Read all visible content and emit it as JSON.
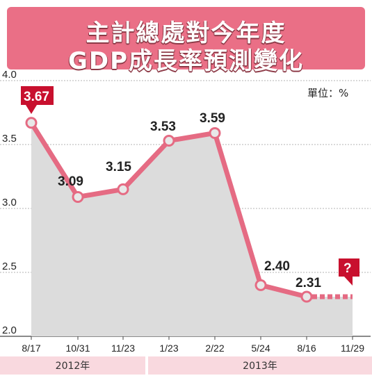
{
  "header": {
    "title_line1": "主計總處對今年度",
    "title_line2": "GDP成長率預測變化"
  },
  "colors": {
    "line": "#e56b83",
    "marker_fill": "#e8e8e8",
    "area": "#dcdcdc",
    "callout": "#c8102e",
    "year_band": "#f9d9df",
    "title_band": "#ea6f86"
  },
  "chart_data": {
    "type": "line",
    "title": "主計總處對今年度 GDP成長率預測變化",
    "unit_label": "單位：%",
    "categories": [
      "8/17",
      "10/31",
      "11/23",
      "1/23",
      "2/22",
      "5/24",
      "8/16",
      "11/29"
    ],
    "values": [
      3.67,
      3.09,
      3.15,
      3.53,
      3.59,
      2.4,
      2.31,
      null
    ],
    "value_labels": [
      "3.67",
      "3.09",
      "3.15",
      "3.53",
      "3.59",
      "2.40",
      "2.31",
      "?"
    ],
    "pending_label": "?",
    "y_ticks": [
      "4.0",
      "3.5",
      "3.0",
      "2.5",
      "2.0"
    ],
    "ylim": [
      2.0,
      4.0
    ],
    "years": [
      {
        "label": "2012年",
        "from": 0,
        "to": 2
      },
      {
        "label": "2013年",
        "from": 3,
        "to": 7
      }
    ],
    "grid": true,
    "area_fill": true
  }
}
